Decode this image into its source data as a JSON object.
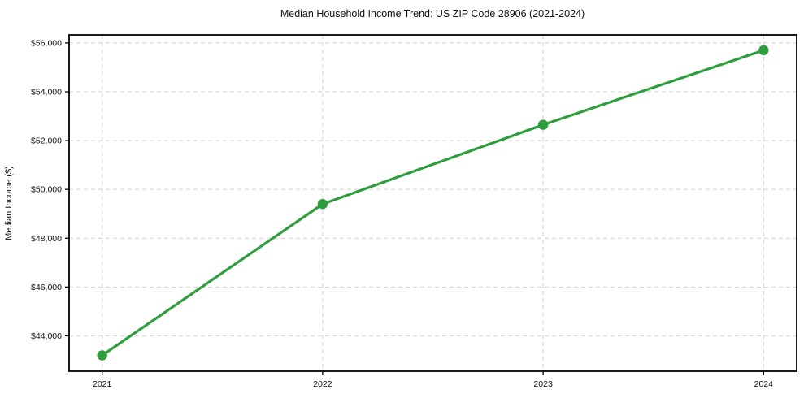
{
  "title": "Median Household Income Trend: US ZIP Code 28906 (2021-2024)",
  "chart_data": {
    "type": "line",
    "title": "Median Household Income Trend: US ZIP Code 28906 (2021-2024)",
    "xlabel": "",
    "ylabel": "Median Income ($)",
    "x": [
      2021,
      2022,
      2023,
      2024
    ],
    "series": [
      {
        "name": "Median Household Income",
        "values": [
          43200,
          49400,
          52650,
          55700
        ]
      }
    ],
    "xticks": [
      2021,
      2022,
      2023,
      2024
    ],
    "xtick_labels": [
      "2021",
      "2022",
      "2023",
      "2024"
    ],
    "yticks": [
      44000,
      46000,
      48000,
      50000,
      52000,
      54000,
      56000
    ],
    "ytick_labels": [
      "$44,000",
      "$46,000",
      "$48,000",
      "$50,000",
      "$52,000",
      "$54,000",
      "$56,000"
    ],
    "xlim": [
      2020.85,
      2024.15
    ],
    "ylim": [
      42550,
      56330
    ],
    "grid": true,
    "legend": "none",
    "line_color": "#2e9e3c",
    "marker": "circle",
    "marker_color": "#2e9e3c",
    "grid_color": "#cfcfcf",
    "spine_color": "#000000",
    "background_color": "#ffffff"
  }
}
